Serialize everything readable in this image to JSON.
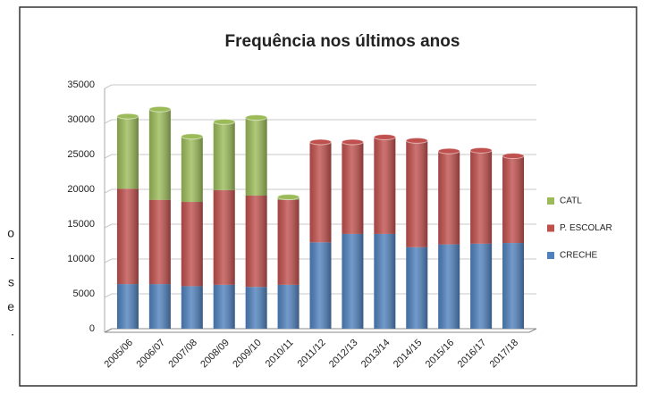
{
  "margin_text": [
    "o",
    "-",
    "s",
    "e",
    "."
  ],
  "chart_data": {
    "type": "bar",
    "stacked": true,
    "title": "Frequência nos últimos anos",
    "categories": [
      "2005/06",
      "2006/07",
      "2007/08",
      "2008/09",
      "2009/10",
      "2010/11",
      "2011/12",
      "2012/13",
      "2013/14",
      "2014/15",
      "2015/16",
      "2016/17",
      "2017/18"
    ],
    "series": [
      {
        "name": "CRECHE",
        "color": "#4f81bd",
        "values": [
          6400,
          6400,
          6100,
          6300,
          6000,
          6300,
          12400,
          13600,
          13600,
          11700,
          12100,
          12200,
          12300
        ]
      },
      {
        "name": "P. ESCOLAR",
        "color": "#c0504d",
        "values": [
          13700,
          12100,
          12100,
          13600,
          13100,
          12200,
          14400,
          13200,
          13900,
          15300,
          13400,
          13400,
          12500
        ]
      },
      {
        "name": "CATL",
        "color": "#9bbb59",
        "values": [
          10400,
          13000,
          9400,
          9800,
          11200,
          400,
          0,
          0,
          0,
          0,
          0,
          0,
          0
        ]
      }
    ],
    "ylim": [
      0,
      35000
    ],
    "yticks": [
      0,
      5000,
      10000,
      15000,
      20000,
      25000,
      30000,
      35000
    ],
    "grid": true,
    "legend": "right"
  }
}
